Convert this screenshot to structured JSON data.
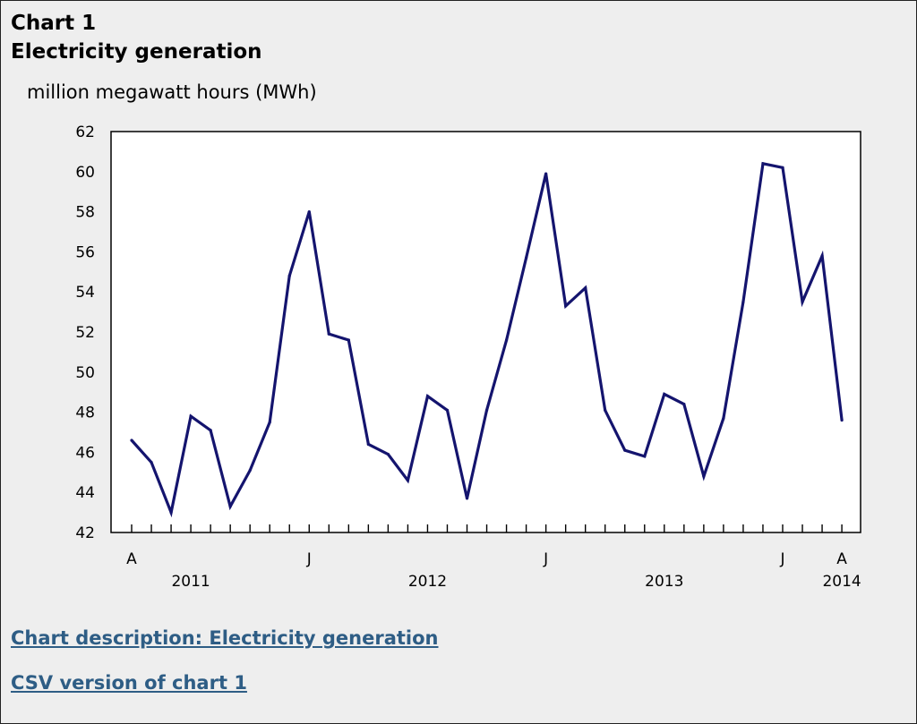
{
  "header": {
    "chart_number": "Chart 1",
    "title": "Electricity generation"
  },
  "links": {
    "description": "Chart description: Electricity generation",
    "csv": "CSV version of chart 1"
  },
  "colors": {
    "background": "#eeeeee",
    "plot_background": "#ffffff",
    "line": "#14146e",
    "link": "#2e5d85"
  },
  "chart_data": {
    "type": "line",
    "title": "Electricity generation",
    "ylabel": "million megawatt hours (MWh)",
    "xlabel": "",
    "ylim": [
      42,
      62
    ],
    "yticks": [
      42,
      44,
      46,
      48,
      50,
      52,
      54,
      56,
      58,
      60,
      62
    ],
    "grid": false,
    "legend": "none",
    "x": [
      "2011-04",
      "2011-05",
      "2011-06",
      "2011-07",
      "2011-08",
      "2011-09",
      "2011-10",
      "2011-11",
      "2011-12",
      "2012-01",
      "2012-02",
      "2012-03",
      "2012-04",
      "2012-05",
      "2012-06",
      "2012-07",
      "2012-08",
      "2012-09",
      "2012-10",
      "2012-11",
      "2012-12",
      "2013-01",
      "2013-02",
      "2013-03",
      "2013-04",
      "2013-05",
      "2013-06",
      "2013-07",
      "2013-08",
      "2013-09",
      "2013-10",
      "2013-11",
      "2013-12",
      "2014-01",
      "2014-02",
      "2014-03",
      "2014-04"
    ],
    "x_tick_labels": [
      {
        "index": 0,
        "label": "A"
      },
      {
        "index": 9,
        "label": "J"
      },
      {
        "index": 21,
        "label": "J"
      },
      {
        "index": 33,
        "label": "J"
      },
      {
        "index": 36,
        "label": "A"
      }
    ],
    "year_labels": [
      {
        "center_index": 3,
        "label": "2011"
      },
      {
        "center_index": 15,
        "label": "2012"
      },
      {
        "center_index": 27,
        "label": "2013"
      },
      {
        "center_index": 36,
        "label": "2014"
      }
    ],
    "series": [
      {
        "values": [
          46.6,
          45.5,
          43.0,
          47.8,
          47.1,
          43.3,
          45.1,
          47.5,
          54.8,
          58.0,
          51.9,
          51.6,
          46.4,
          45.9,
          44.6,
          48.8,
          48.1,
          43.7,
          48.1,
          51.6,
          55.7,
          59.9,
          53.3,
          54.2,
          48.1,
          46.1,
          45.8,
          48.9,
          48.4,
          44.8,
          47.7,
          53.5,
          60.4,
          60.2,
          53.5,
          55.8,
          47.6
        ]
      }
    ]
  }
}
